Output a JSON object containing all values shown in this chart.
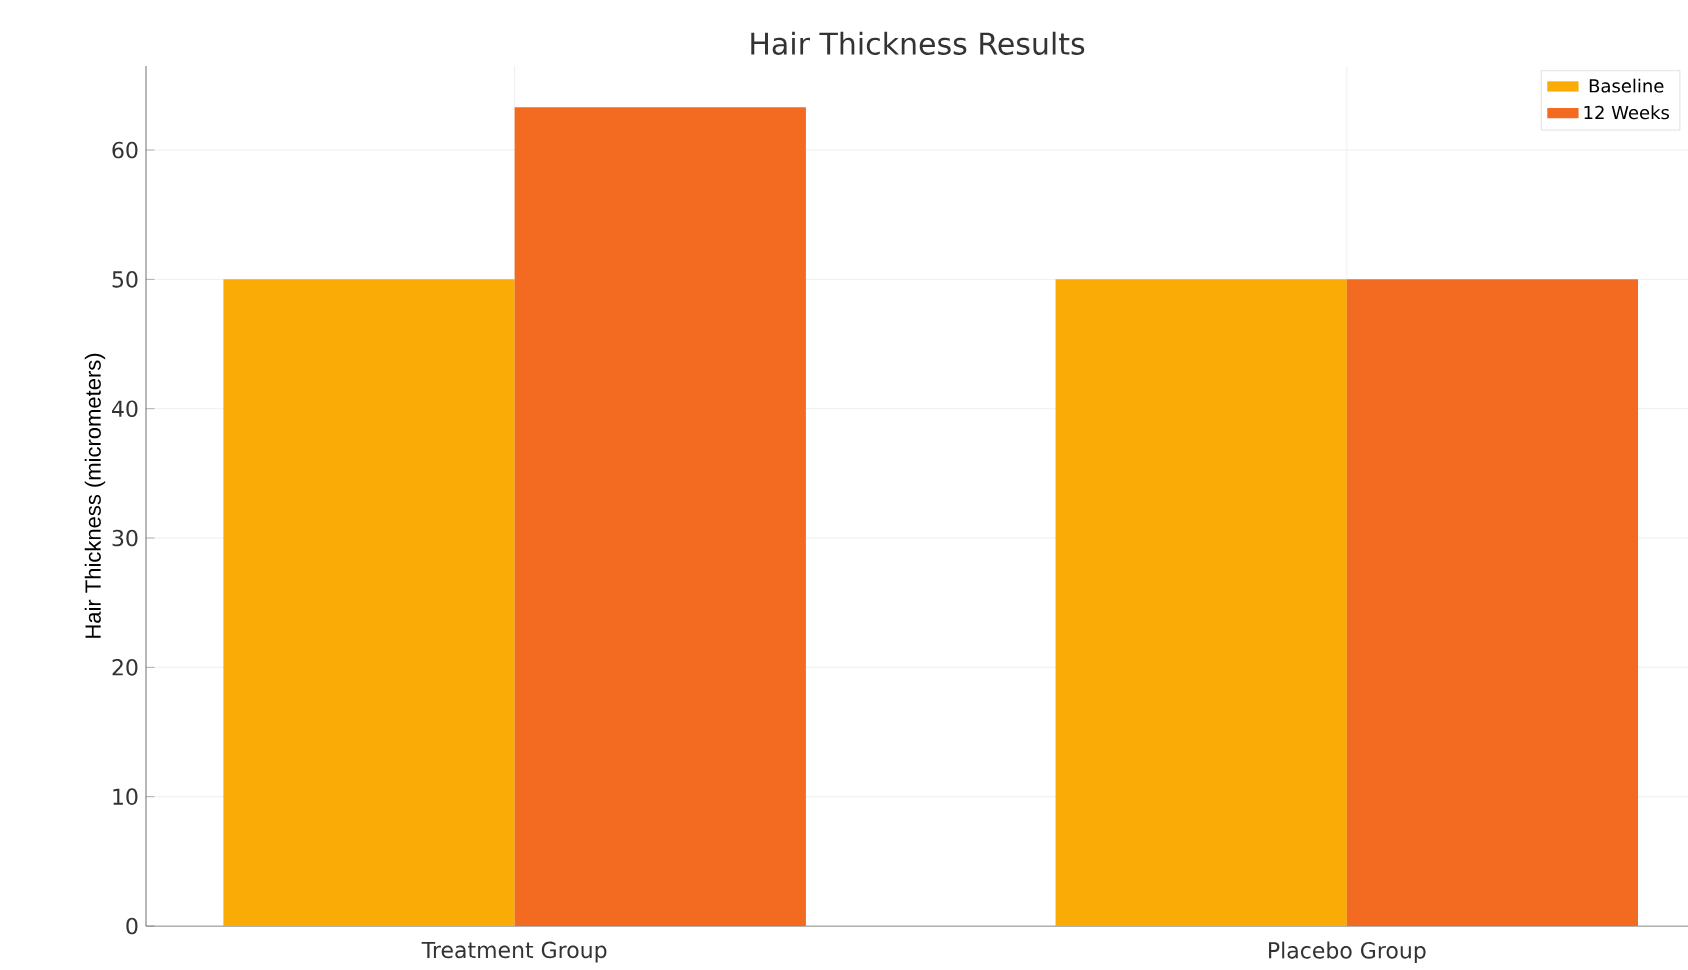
{
  "chart_data": {
    "type": "bar",
    "title": "Hair Thickness Results",
    "ylabel": "Hair Thickness (micrometers)",
    "categories": [
      "Treatment Group",
      "Placebo Group"
    ],
    "series": [
      {
        "name": "Baseline",
        "color": "#fbab05",
        "values": [
          50,
          50
        ]
      },
      {
        "name": "12 Weeks",
        "color": "#f26b21",
        "values": [
          63.3,
          50
        ]
      }
    ],
    "ylim": [
      0,
      66.5
    ],
    "yticks": [
      0,
      10,
      20,
      30,
      40,
      50,
      60
    ],
    "grid": true,
    "legend": "top right"
  }
}
